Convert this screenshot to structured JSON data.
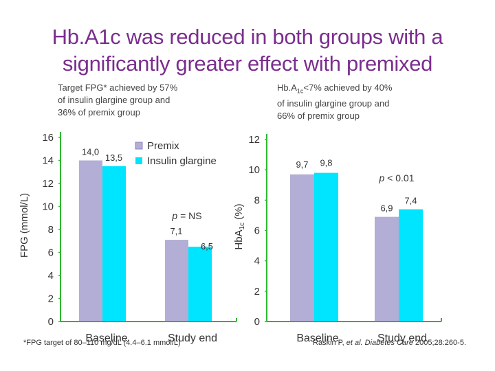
{
  "title_lines": [
    "Hb.A1c was reduced in both groups with a",
    "significantly greater effect with premixed"
  ],
  "note_left_lines": [
    "Target FPG* achieved by 57%",
    "of insulin glargine group and",
    "36% of premix group"
  ],
  "note_right": {
    "line1_pre": "Hb.A",
    "line1_sub": "1c",
    "line1_post": "<7% achieved by 40%",
    "line2": "of insulin glargine group and",
    "line3": "66% of premix group"
  },
  "footnote": "*FPG target of 80–110 mg/dL (4.4–6.1 mmol/L)",
  "citation": {
    "pre": "Raskin P, ",
    "italic": "et al. Diabetes Care",
    "post": " 2005;28:260-5."
  },
  "colors": {
    "title": "#7b2d8e",
    "premix": "#b3aed5",
    "glargine": "#00e5ff",
    "axis": "#2eb82e",
    "text": "#333333"
  },
  "chart_data": [
    {
      "type": "bar",
      "categories": [
        "Baseline",
        "Study end"
      ],
      "series": [
        {
          "name": "Premix",
          "values": [
            14.0,
            7.1
          ],
          "labels": [
            "14,0",
            "7,1"
          ]
        },
        {
          "name": "Insulin glargine",
          "values": [
            13.5,
            6.5
          ],
          "labels": [
            "13,5",
            "6,5"
          ]
        }
      ],
      "ylabel": "FPG (mmol/L)",
      "ylim": [
        0,
        16
      ],
      "yticks": [
        "0",
        "2",
        "4",
        "6",
        "8",
        "10",
        "12",
        "14",
        "16"
      ],
      "annotation": {
        "italic": "p",
        "rest": " = NS"
      },
      "legend": [
        "Premix",
        "Insulin glargine"
      ]
    },
    {
      "type": "bar",
      "categories": [
        "Baseline",
        "Study end"
      ],
      "series": [
        {
          "name": "Premix",
          "values": [
            9.7,
            6.9
          ],
          "labels": [
            "9,7",
            "6,9"
          ]
        },
        {
          "name": "Insulin glargine",
          "values": [
            9.8,
            7.4
          ],
          "labels": [
            "9,8",
            "7,4"
          ]
        }
      ],
      "ylabel": {
        "pre": "HbA",
        "sub": "1c",
        "post": " (%)"
      },
      "ylim": [
        0,
        12
      ],
      "yticks": [
        "0",
        "2",
        "4",
        "6",
        "8",
        "10",
        "12"
      ],
      "annotation": {
        "italic": "p",
        "rest": " < 0.01"
      }
    }
  ]
}
